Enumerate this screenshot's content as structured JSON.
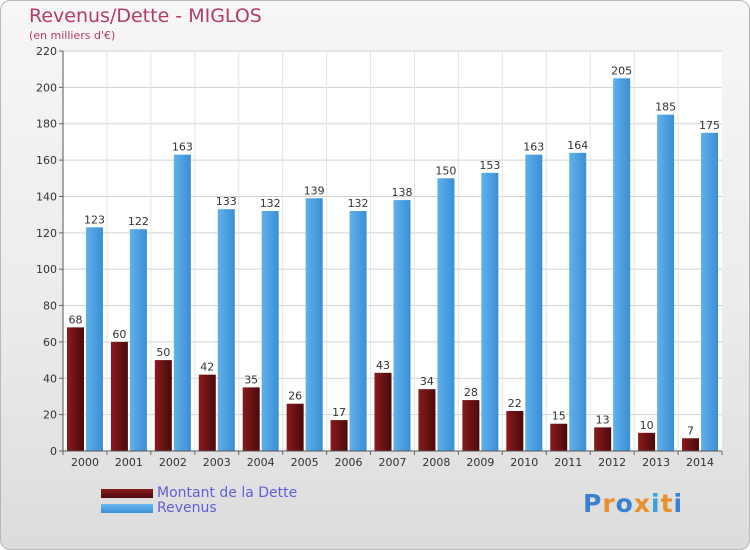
{
  "header": {
    "title": "Revenus/Dette - MIGLOS",
    "subtitle": "(en milliers d'€)"
  },
  "colors": {
    "debt": "#7a1416",
    "revenue": "#4a9fe0",
    "title": "#b23b6b",
    "legend_text": "#5f5fd6"
  },
  "chart_data": {
    "type": "bar",
    "title": "Revenus/Dette - MIGLOS",
    "subtitle": "(en milliers d'€)",
    "xlabel": "",
    "ylabel": "",
    "ylim": [
      0,
      220
    ],
    "yticks": [
      0,
      20,
      40,
      60,
      80,
      100,
      120,
      140,
      160,
      180,
      200,
      220
    ],
    "grid": true,
    "legend_position": "bottom-left",
    "categories": [
      "2000",
      "2001",
      "2002",
      "2003",
      "2004",
      "2005",
      "2006",
      "2007",
      "2008",
      "2009",
      "2010",
      "2011",
      "2012",
      "2013",
      "2014"
    ],
    "series": [
      {
        "name": "Montant de la Dette",
        "values": [
          68,
          60,
          50,
          42,
          35,
          26,
          17,
          43,
          34,
          28,
          22,
          15,
          13,
          10,
          7
        ]
      },
      {
        "name": "Revenus",
        "values": [
          123,
          122,
          163,
          133,
          132,
          139,
          132,
          138,
          150,
          153,
          163,
          164,
          205,
          185,
          175
        ]
      }
    ]
  },
  "legend": {
    "items": [
      {
        "label": "Montant de la Dette"
      },
      {
        "label": "Revenus"
      }
    ]
  },
  "logo": {
    "text": "Proxiti",
    "letter_colors": [
      "#3a7fd0",
      "#e8902a",
      "#3a7fd0",
      "#e8902a",
      "#3aa0d8",
      "#e8902a",
      "#3a7fd0"
    ]
  }
}
